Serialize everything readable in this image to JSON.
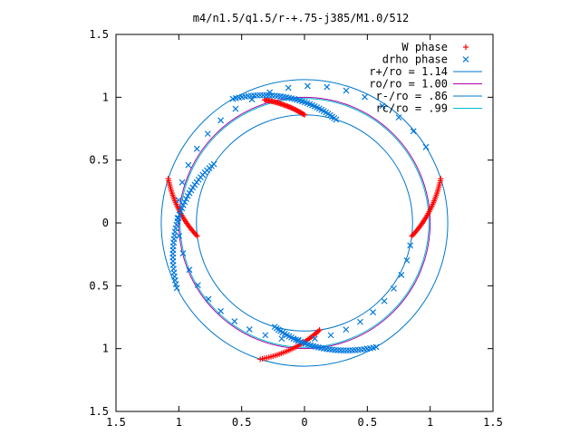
{
  "chart_data": {
    "type": "scatter",
    "title": "m4/n1.5/q1.5/r-+.75-j385/M1.0/512",
    "xlim": [
      -1.5,
      1.5
    ],
    "ylim": [
      -1.5,
      1.5
    ],
    "x_ticks": [
      -1.5,
      -1,
      -0.5,
      0,
      0.5,
      1,
      1.5
    ],
    "y_ticks": [
      -1.5,
      -1,
      -0.5,
      0,
      0.5,
      1,
      1.5
    ],
    "x_tick_labels": [
      "1.5",
      "1",
      "0.5",
      "0",
      "0.5",
      "1",
      "1.5"
    ],
    "y_tick_labels": [
      "1.5",
      "1",
      "0.5",
      "0",
      "0.5",
      "1",
      "1.5"
    ],
    "legend_position": "top-right",
    "series": [
      {
        "name": "W phase",
        "kind": "points",
        "marker": "plus",
        "color": "#ff0000",
        "arcs": [
          {
            "r_start": 1.03,
            "r_end": 0.86,
            "theta_start": 108.0,
            "theta_end": 90.0,
            "n": 34
          },
          {
            "r_start": 1.14,
            "r_end": 0.86,
            "theta_start": 18.0,
            "theta_end": -7.0,
            "n": 34
          },
          {
            "r_start": 0.86,
            "r_end": 1.14,
            "theta_start": 187.0,
            "theta_end": 162.0,
            "n": 34
          },
          {
            "r_start": 0.86,
            "r_end": 1.14,
            "theta_start": 278.0,
            "theta_end": 252.0,
            "n": 34
          }
        ]
      },
      {
        "name": "drho phase",
        "kind": "points",
        "marker": "cross",
        "color": "#0077dd",
        "arcs": [
          {
            "r_start": 0.86,
            "r_end": 1.14,
            "theta_start": 73.0,
            "theta_end": 120.0,
            "n": 40
          },
          {
            "r_start": 0.86,
            "r_end": 1.14,
            "theta_start": 147.0,
            "theta_end": 207.0,
            "n": 40
          },
          {
            "r_start": 0.86,
            "r_end": 1.14,
            "theta_start": 254.0,
            "theta_end": 300.0,
            "n": 40
          },
          {
            "r_start": 0.86,
            "r_end": 1.14,
            "theta_start": 348.0,
            "theta_end": 32.0,
            "n": 40
          }
        ]
      },
      {
        "name": "r+/ro = 1.14",
        "kind": "circle",
        "r": 1.14,
        "color": "#0077cc"
      },
      {
        "name": "ro/ro = 1.00",
        "kind": "circle",
        "r": 1.0,
        "color": "#aa00aa"
      },
      {
        "name": "r-/ro = .86",
        "kind": "circle",
        "r": 0.86,
        "color": "#0077cc"
      },
      {
        "name": "rc/ro = .99",
        "kind": "circle",
        "r": 0.99,
        "color": "#00bbcc"
      }
    ]
  }
}
